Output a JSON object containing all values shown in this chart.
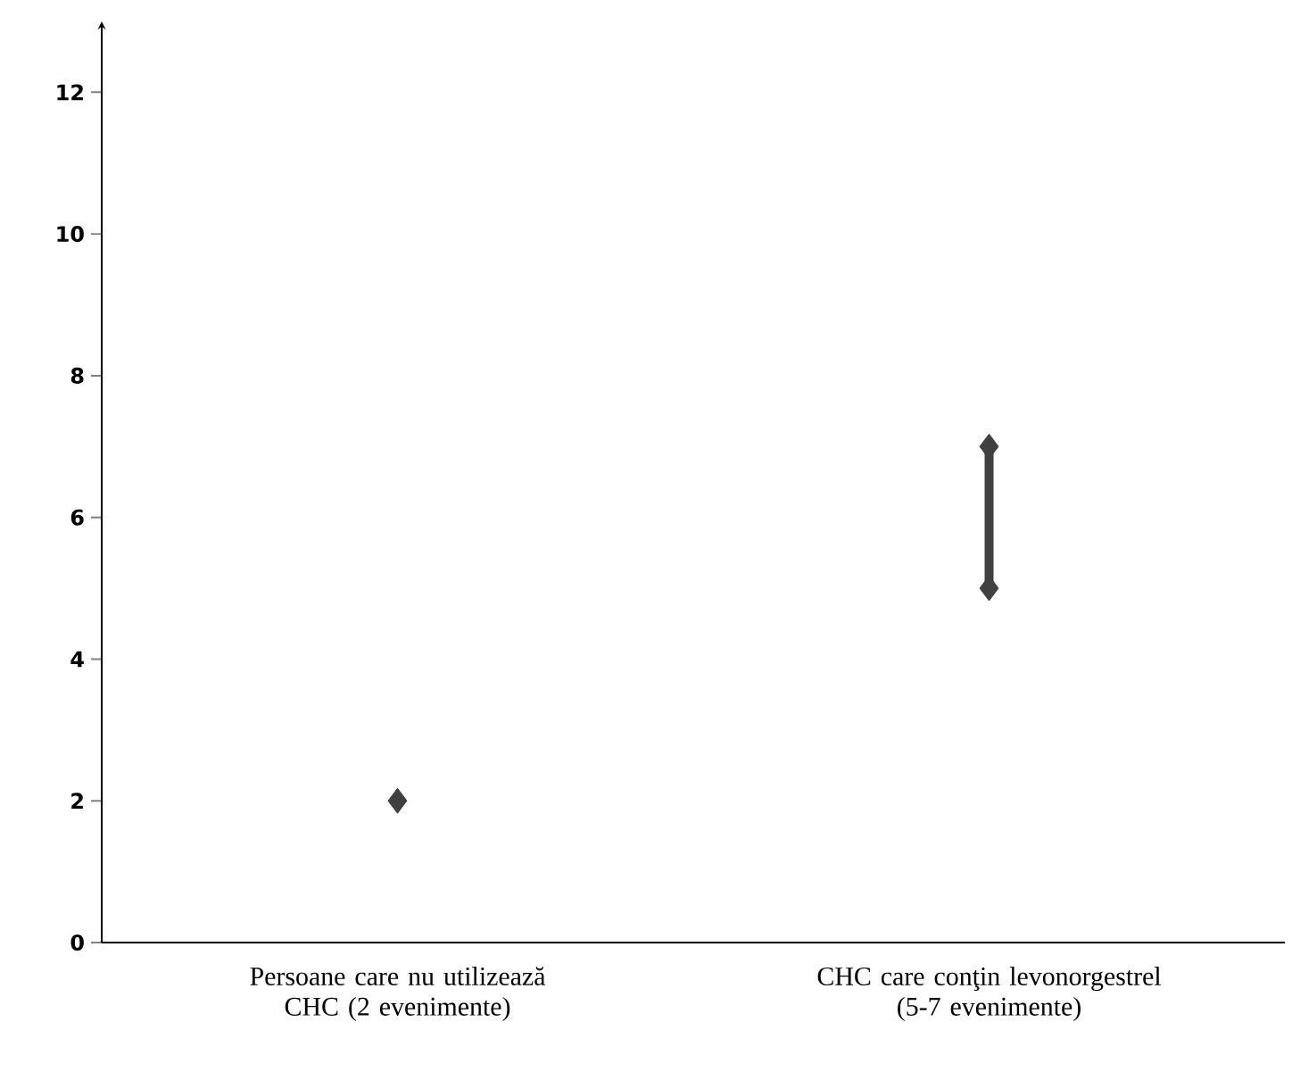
{
  "chart_data": {
    "type": "scatter",
    "categories": [
      "Persoane care nu utilizează CHC (2 evenimente)",
      "CHC care conţin levonorgestrel (5-7 evenimente)"
    ],
    "ylim": [
      0,
      13
    ],
    "yticks": [
      0,
      2,
      4,
      6,
      8,
      10,
      12
    ],
    "marker": "diamond",
    "series": [
      {
        "color": "#404040",
        "values": [
          2,
          null
        ]
      },
      {
        "type": "line",
        "color": "#404040",
        "x": [
          "CHC care conţin levonorgestrel (5-7 evenimente)",
          "CHC care conţin levonorgestrel (5-7 evenimente)"
        ],
        "values": [
          5,
          7
        ]
      }
    ]
  }
}
